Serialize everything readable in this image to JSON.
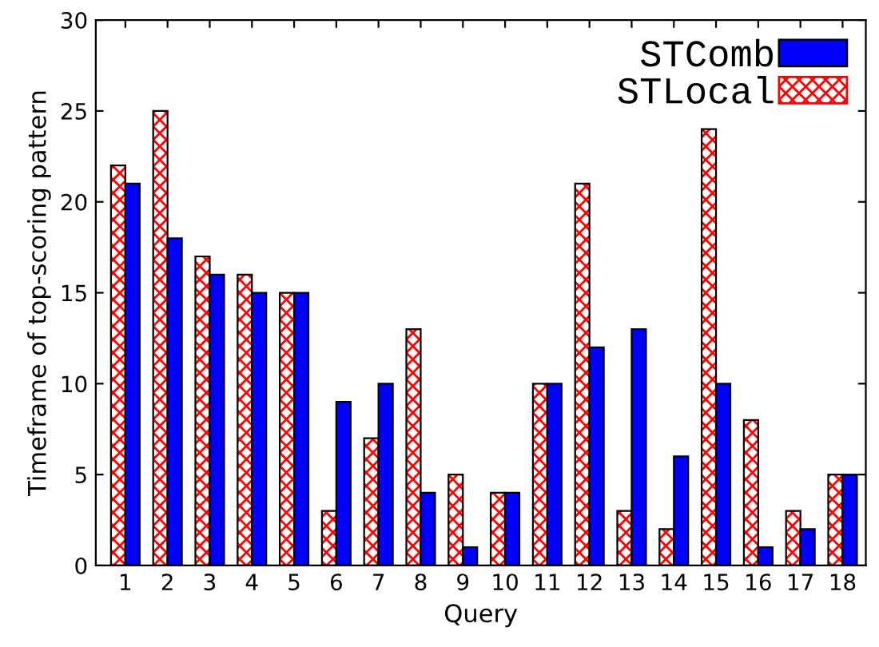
{
  "chart_data": {
    "type": "bar",
    "xlabel": "Query",
    "ylabel": "Timeframe of top-scoring pattern",
    "categories": [
      "1",
      "2",
      "3",
      "4",
      "5",
      "6",
      "7",
      "8",
      "9",
      "10",
      "11",
      "12",
      "13",
      "14",
      "15",
      "16",
      "17",
      "18"
    ],
    "series": [
      {
        "name": "STLocal",
        "color": "#ff0000",
        "values": [
          22,
          25,
          17,
          16,
          15,
          3,
          7,
          13,
          5,
          4,
          10,
          21,
          3,
          2,
          24,
          8,
          3,
          5
        ]
      },
      {
        "name": "STComb",
        "color": "#0000ff",
        "values": [
          21,
          18,
          16,
          15,
          15,
          9,
          10,
          4,
          1,
          4,
          10,
          12,
          13,
          6,
          10,
          1,
          2,
          5
        ]
      }
    ],
    "ylim": [
      0,
      30
    ],
    "yticks": [
      0,
      5,
      10,
      15,
      20,
      25,
      30
    ],
    "grid": false,
    "legend": "top right"
  }
}
